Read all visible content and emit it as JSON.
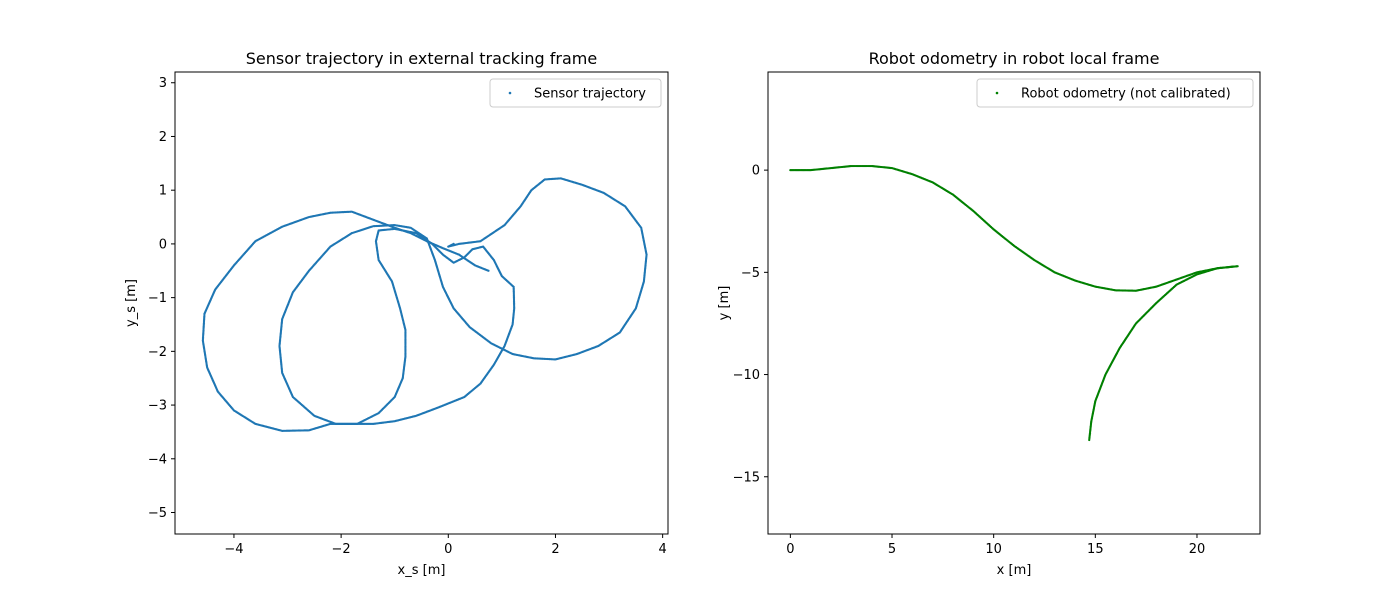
{
  "chart_data": [
    {
      "type": "scatter",
      "title": "Sensor trajectory in external tracking frame",
      "xlabel": "x_s [m]",
      "ylabel": "y_s [m]",
      "xlim": [
        -5.1,
        4.1
      ],
      "ylim": [
        -5.4,
        3.2
      ],
      "xticks": [
        -4,
        -2,
        0,
        2,
        4
      ],
      "yticks": [
        -5,
        -4,
        -3,
        -2,
        -1,
        0,
        1,
        2,
        3
      ],
      "xtick_labels": [
        "−4",
        "−2",
        "0",
        "2",
        "4"
      ],
      "ytick_labels": [
        "−5",
        "−4",
        "−3",
        "−2",
        "−1",
        "0",
        "1",
        "2",
        "3"
      ],
      "grid": false,
      "legend_position": "top-right",
      "series": [
        {
          "name": "Sensor trajectory",
          "color": "#1f77b4",
          "points": [
            [
              0.75,
              -0.5
            ],
            [
              0.5,
              -0.4
            ],
            [
              0.2,
              -0.2
            ],
            [
              -0.1,
              -0.08
            ],
            [
              -0.4,
              0.05
            ],
            [
              -0.7,
              0.2
            ],
            [
              -1.0,
              0.3
            ],
            [
              -1.4,
              0.45
            ],
            [
              -1.8,
              0.6
            ],
            [
              -2.2,
              0.58
            ],
            [
              -2.6,
              0.5
            ],
            [
              -3.1,
              0.32
            ],
            [
              -3.6,
              0.05
            ],
            [
              -4.0,
              -0.4
            ],
            [
              -4.35,
              -0.85
            ],
            [
              -4.55,
              -1.3
            ],
            [
              -4.58,
              -1.8
            ],
            [
              -4.5,
              -2.3
            ],
            [
              -4.3,
              -2.75
            ],
            [
              -4.0,
              -3.1
            ],
            [
              -3.6,
              -3.35
            ],
            [
              -3.1,
              -3.48
            ],
            [
              -2.6,
              -3.47
            ],
            [
              -2.2,
              -3.35
            ],
            [
              -1.8,
              -3.35
            ],
            [
              -1.4,
              -3.35
            ],
            [
              -1.0,
              -3.3
            ],
            [
              -0.6,
              -3.2
            ],
            [
              -0.2,
              -3.05
            ],
            [
              0.3,
              -2.85
            ],
            [
              0.6,
              -2.6
            ],
            [
              0.85,
              -2.25
            ],
            [
              1.05,
              -1.9
            ],
            [
              1.2,
              -1.5
            ],
            [
              1.23,
              -1.2
            ],
            [
              1.22,
              -0.8
            ],
            [
              1.0,
              -0.6
            ],
            [
              0.85,
              -0.3
            ],
            [
              0.65,
              -0.05
            ],
            [
              0.45,
              -0.1
            ],
            [
              0.3,
              -0.25
            ],
            [
              0.1,
              -0.35
            ],
            [
              -0.1,
              -0.2
            ],
            [
              -0.3,
              0.0
            ],
            [
              -0.6,
              0.2
            ],
            [
              -1.0,
              0.28
            ],
            [
              -1.3,
              0.25
            ],
            [
              -1.35,
              0.05
            ],
            [
              -1.3,
              -0.3
            ],
            [
              -1.05,
              -0.7
            ],
            [
              -0.9,
              -1.2
            ],
            [
              -0.8,
              -1.6
            ],
            [
              -0.8,
              -2.1
            ],
            [
              -0.85,
              -2.5
            ],
            [
              -1.0,
              -2.85
            ],
            [
              -1.3,
              -3.15
            ],
            [
              -1.7,
              -3.35
            ],
            [
              -2.1,
              -3.35
            ],
            [
              -2.5,
              -3.2
            ],
            [
              -2.9,
              -2.85
            ],
            [
              -3.1,
              -2.4
            ],
            [
              -3.15,
              -1.9
            ],
            [
              -3.1,
              -1.4
            ],
            [
              -2.9,
              -0.9
            ],
            [
              -2.6,
              -0.5
            ],
            [
              -2.2,
              -0.05
            ],
            [
              -1.8,
              0.2
            ],
            [
              -1.4,
              0.33
            ],
            [
              -1.0,
              0.35
            ],
            [
              -0.7,
              0.3
            ],
            [
              -0.4,
              0.1
            ],
            [
              -0.25,
              -0.3
            ],
            [
              -0.1,
              -0.8
            ],
            [
              0.1,
              -1.2
            ],
            [
              0.4,
              -1.55
            ],
            [
              0.8,
              -1.85
            ],
            [
              1.2,
              -2.05
            ],
            [
              1.6,
              -2.13
            ],
            [
              2.0,
              -2.15
            ],
            [
              2.4,
              -2.05
            ],
            [
              2.8,
              -1.9
            ],
            [
              3.2,
              -1.65
            ],
            [
              3.5,
              -1.2
            ],
            [
              3.65,
              -0.7
            ],
            [
              3.7,
              -0.2
            ],
            [
              3.6,
              0.3
            ],
            [
              3.3,
              0.7
            ],
            [
              2.9,
              0.95
            ],
            [
              2.5,
              1.1
            ],
            [
              2.1,
              1.22
            ],
            [
              1.8,
              1.2
            ],
            [
              1.55,
              1.0
            ],
            [
              1.35,
              0.7
            ],
            [
              1.05,
              0.35
            ],
            [
              0.6,
              0.05
            ],
            [
              0.2,
              0.0
            ],
            [
              0.0,
              -0.05
            ],
            [
              0.1,
              0.0
            ]
          ]
        }
      ]
    },
    {
      "type": "scatter",
      "title": "Robot odometry in robot local frame",
      "xlabel": "x [m]",
      "ylabel": "y [m]",
      "xlim": [
        -1.1,
        23.1
      ],
      "ylim": [
        -17.8,
        4.8
      ],
      "xticks": [
        0,
        5,
        10,
        15,
        20
      ],
      "yticks": [
        -15,
        -10,
        -5,
        0
      ],
      "xtick_labels": [
        "0",
        "5",
        "10",
        "15",
        "20"
      ],
      "ytick_labels": [
        "−15",
        "−10",
        "−5",
        "0"
      ],
      "grid": false,
      "legend_position": "top-right",
      "series": [
        {
          "name": "Robot odometry (not calibrated)",
          "color": "#008000",
          "points": [
            [
              0,
              0
            ],
            [
              1,
              0.0
            ],
            [
              2,
              0.1
            ],
            [
              3,
              0.2
            ],
            [
              4,
              0.2
            ],
            [
              5,
              0.1
            ],
            [
              6,
              -0.2
            ],
            [
              7,
              -0.6
            ],
            [
              8,
              -1.2
            ],
            [
              9,
              -2.0
            ],
            [
              10,
              -2.9
            ],
            [
              11,
              -3.7
            ],
            [
              12,
              -4.4
            ],
            [
              13,
              -5.0
            ],
            [
              14,
              -5.4
            ],
            [
              15,
              -5.7
            ],
            [
              16,
              -5.88
            ],
            [
              17,
              -5.9
            ],
            [
              18,
              -5.7
            ],
            [
              19,
              -5.35
            ],
            [
              20,
              -5.0
            ],
            [
              21,
              -4.8
            ],
            [
              22,
              -4.7
            ],
            [
              21.0,
              -4.8
            ],
            [
              20.0,
              -5.1
            ],
            [
              19.0,
              -5.6
            ],
            [
              18.0,
              -6.5
            ],
            [
              17.0,
              -7.5
            ],
            [
              16.2,
              -8.7
            ],
            [
              15.5,
              -10.0
            ],
            [
              15.0,
              -11.3
            ],
            [
              14.8,
              -12.3
            ],
            [
              14.7,
              -13.2
            ]
          ]
        }
      ]
    }
  ]
}
